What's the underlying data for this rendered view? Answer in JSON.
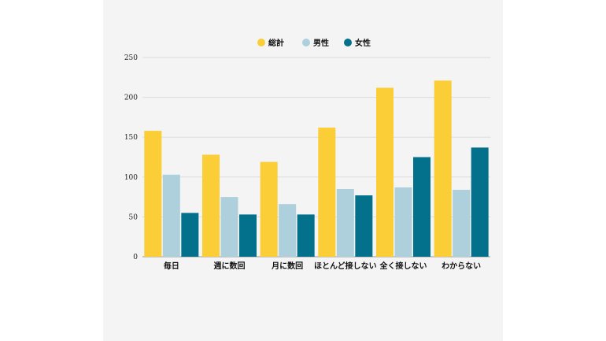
{
  "chart_data": {
    "type": "bar",
    "categories": [
      "毎日",
      "週に数回",
      "月に数回",
      "ほとんど接しない",
      "全く接しない",
      "わからない"
    ],
    "series": [
      {
        "name": "総計",
        "color": "#FBCD36",
        "values": [
          158,
          128,
          119,
          162,
          212,
          221
        ]
      },
      {
        "name": "男性",
        "color": "#AED0DC",
        "values": [
          103,
          75,
          66,
          85,
          87,
          84
        ]
      },
      {
        "name": "女性",
        "color": "#04718C",
        "values": [
          55,
          53,
          53,
          77,
          125,
          137
        ]
      }
    ],
    "ylim": [
      0,
      250
    ],
    "yticks": [
      0,
      50,
      100,
      150,
      200,
      250
    ],
    "grid": true,
    "legend_position": "top-center"
  }
}
